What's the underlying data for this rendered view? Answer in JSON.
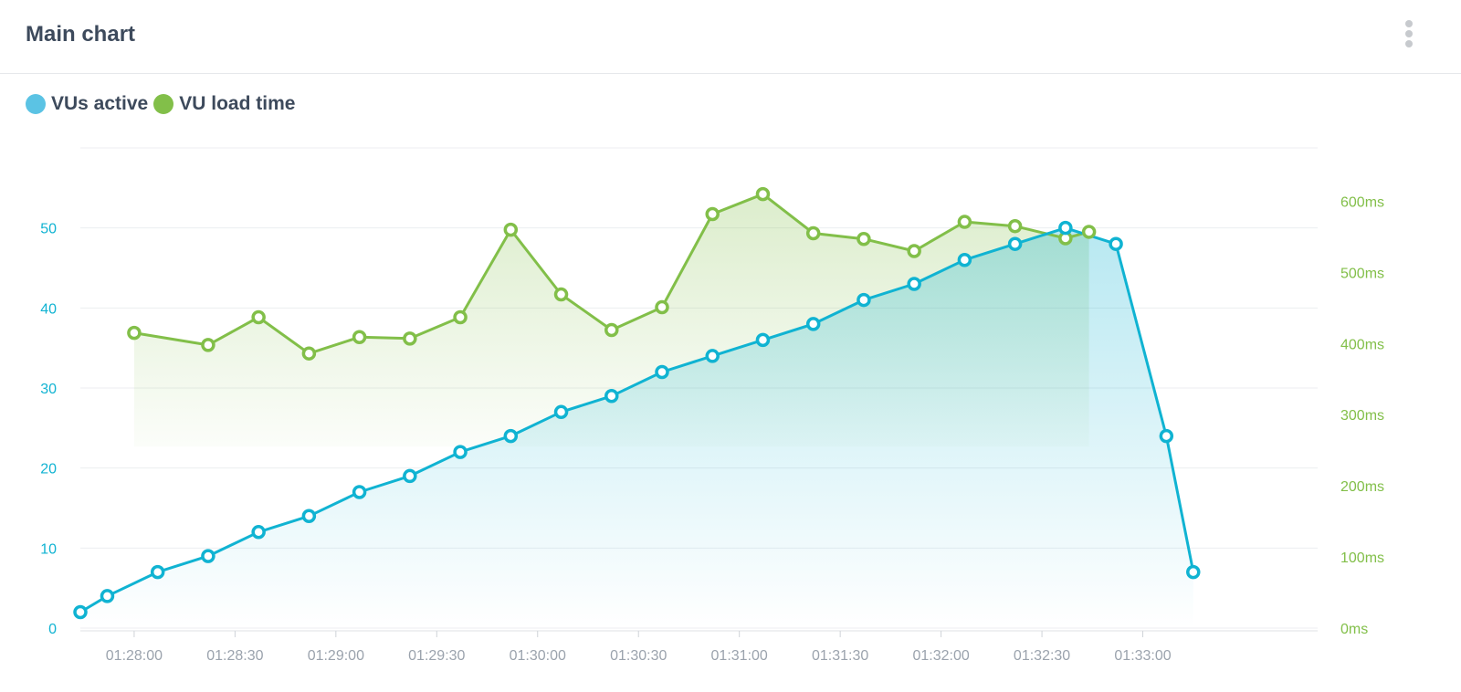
{
  "header": {
    "title": "Main chart",
    "menu_icon": "vertical-ellipsis-icon"
  },
  "colors": {
    "vus": "#10b3d2",
    "load": "#82bf49",
    "grid": "#eceef0",
    "xtick": "#9ba3ad"
  },
  "chart_data": {
    "type": "line",
    "legend": [
      {
        "label": "VUs active",
        "color": "#5bc3e4"
      },
      {
        "label": "VU load time",
        "color": "#82bf49"
      }
    ],
    "x_ticks": [
      "01:28:00",
      "01:28:30",
      "01:29:00",
      "01:29:30",
      "01:30:00",
      "01:30:30",
      "01:31:00",
      "01:31:30",
      "01:32:00",
      "01:32:30",
      "01:33:00"
    ],
    "y_left_ticks": [
      "0",
      "10",
      "20",
      "30",
      "40",
      "50"
    ],
    "y_right_ticks": [
      "0ms",
      "100ms",
      "200ms",
      "300ms",
      "400ms",
      "500ms",
      "600ms"
    ],
    "y_left_range": [
      0,
      60
    ],
    "y_right_range": [
      0,
      675
    ],
    "x_range": [
      "01:27:44",
      "01:33:52"
    ],
    "grid": true,
    "series": [
      {
        "name": "VUs active",
        "axis": "left",
        "x": [
          "01:27:44",
          "01:27:52",
          "01:28:07",
          "01:28:22",
          "01:28:37",
          "01:28:52",
          "01:29:07",
          "01:29:22",
          "01:29:37",
          "01:29:52",
          "01:30:07",
          "01:30:22",
          "01:30:37",
          "01:30:52",
          "01:31:07",
          "01:31:22",
          "01:31:37",
          "01:31:52",
          "01:32:07",
          "01:32:22",
          "01:32:37",
          "01:32:52",
          "01:33:07",
          "01:33:15"
        ],
        "values": [
          2,
          4,
          7,
          9,
          12,
          14,
          17,
          19,
          22,
          24,
          27,
          29,
          32,
          34,
          36,
          38,
          41,
          43,
          46,
          48,
          50,
          48,
          24,
          7
        ]
      },
      {
        "name": "VU load time",
        "axis": "right",
        "x": [
          "01:28:00",
          "01:28:22",
          "01:28:37",
          "01:28:52",
          "01:29:07",
          "01:29:22",
          "01:29:37",
          "01:29:52",
          "01:30:07",
          "01:30:22",
          "01:30:37",
          "01:30:52",
          "01:31:07",
          "01:31:22",
          "01:31:37",
          "01:31:52",
          "01:32:07",
          "01:32:22",
          "01:32:37",
          "01:32:44"
        ],
        "values": [
          415,
          398,
          437,
          386,
          409,
          407,
          437,
          560,
          469,
          419,
          451,
          582,
          610,
          555,
          547,
          530,
          571,
          565,
          548,
          557
        ]
      }
    ]
  }
}
